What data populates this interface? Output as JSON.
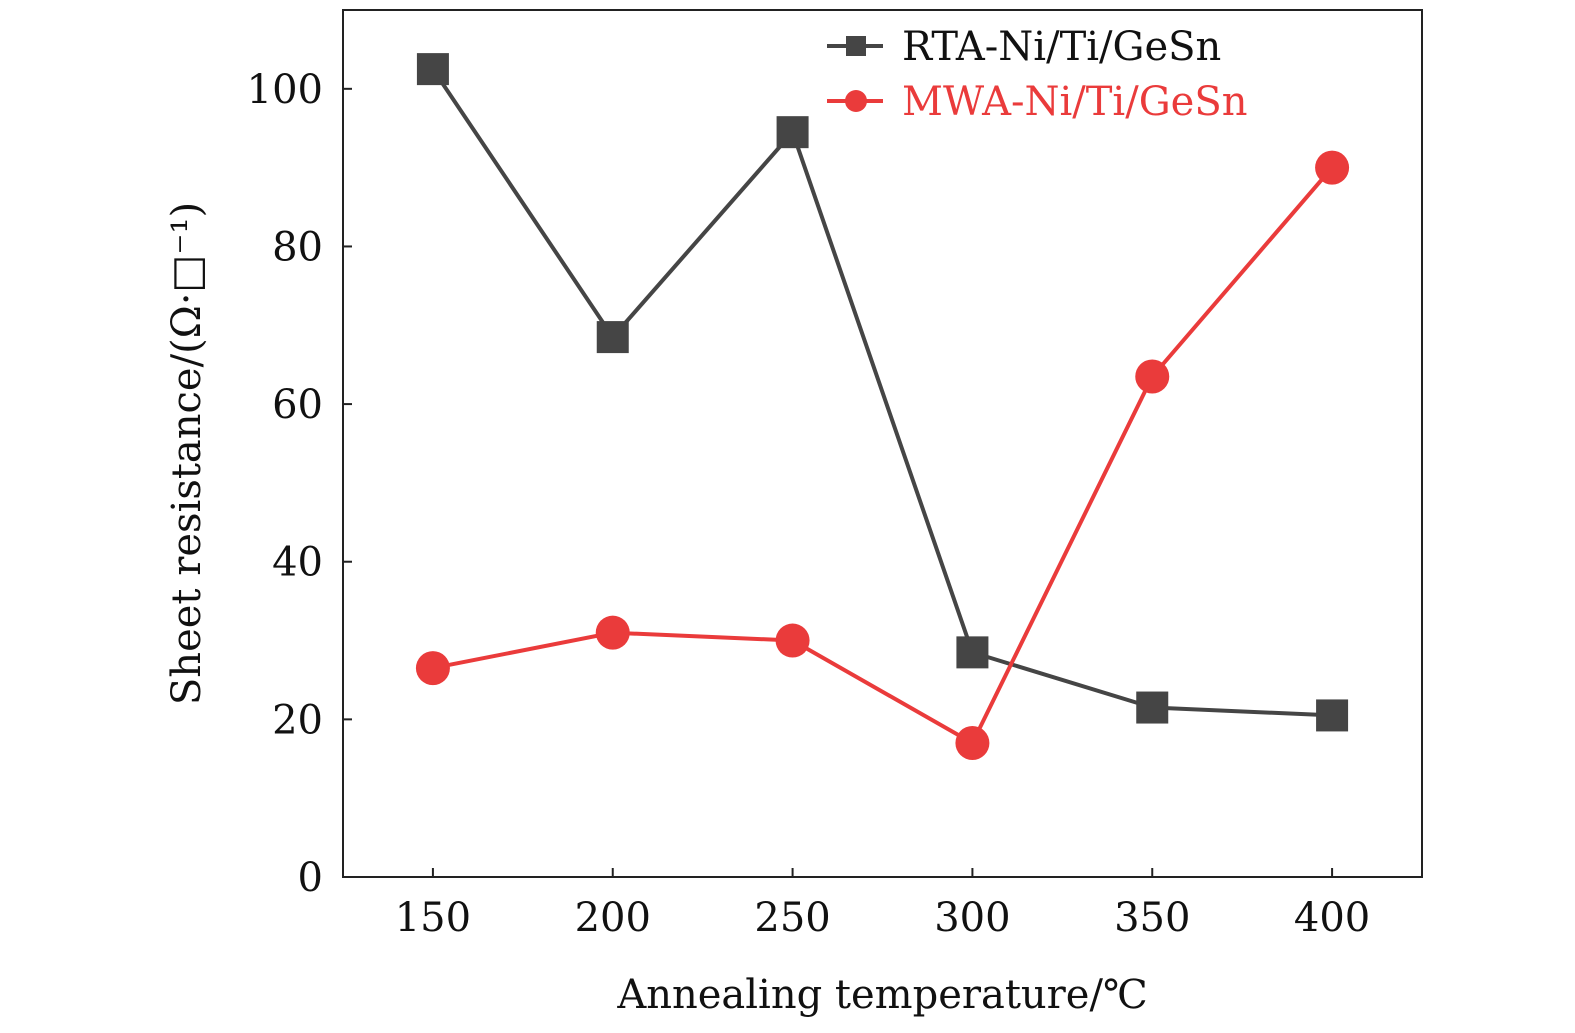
{
  "chart_data": {
    "type": "line",
    "x": [
      150,
      200,
      250,
      300,
      350,
      400
    ],
    "xlabel": "Annealing temperature/℃",
    "ylabel": "Sheet resistance/(Ω·□⁻¹)",
    "xlim": [
      125,
      425
    ],
    "ylim": [
      0,
      110
    ],
    "xticks": [
      "150",
      "200",
      "250",
      "300",
      "350",
      "400"
    ],
    "yticks": [
      "0",
      "20",
      "40",
      "60",
      "80",
      "100"
    ],
    "grid": false,
    "legend_position": "top-right",
    "series": [
      {
        "name": "RTA-Ni/Ti/GeSn",
        "marker": "square",
        "color": "#454545",
        "values": [
          102.5,
          68.5,
          94.5,
          28.5,
          21.5,
          20.5
        ]
      },
      {
        "name": "MWA-Ni/Ti/GeSn",
        "marker": "circle",
        "color": "#ea3b3b",
        "values": [
          26.5,
          31.0,
          30.0,
          17.0,
          63.5,
          90.0
        ]
      }
    ]
  }
}
